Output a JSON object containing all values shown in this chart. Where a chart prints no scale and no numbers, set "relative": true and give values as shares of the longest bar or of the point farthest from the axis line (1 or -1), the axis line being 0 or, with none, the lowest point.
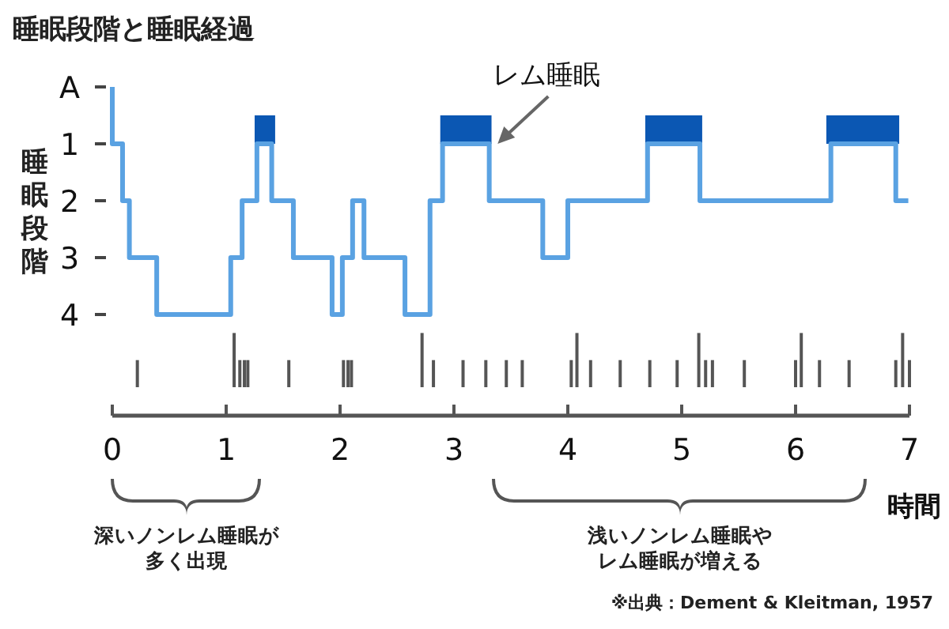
{
  "chart_data": [
    {
      "type": "step",
      "title": "睡眠段階と睡眠経過",
      "ylabel": "睡眠段階",
      "xlabel": "時間",
      "x": [
        0,
        0,
        0.09,
        0.15,
        0.39,
        1.04,
        1.14,
        1.27,
        1.4,
        1.59,
        1.93,
        2.02,
        2.11,
        2.21,
        2.57,
        2.79,
        2.9,
        3.31,
        3.78,
        4.0,
        4.7,
        5.16,
        6.31,
        6.88,
        6.99
      ],
      "series": [
        {
          "color": "#5aa2e2",
          "values": [
            0,
            1,
            2,
            3,
            4,
            3,
            2,
            1,
            2,
            3,
            4,
            3,
            2,
            3,
            4,
            2,
            1,
            2,
            3,
            2,
            1,
            2,
            1,
            2,
            2
          ]
        }
      ],
      "bands": [
        {
          "axis": "x",
          "from": 1.25,
          "to": 1.43,
          "color": "#0b57b3"
        },
        {
          "axis": "x",
          "from": 2.88,
          "to": 3.33,
          "color": "#0b57b3"
        },
        {
          "axis": "x",
          "from": 4.68,
          "to": 5.18,
          "color": "#0b57b3"
        },
        {
          "axis": "x",
          "from": 6.27,
          "to": 6.91,
          "color": "#0b57b3"
        }
      ],
      "annotations": [
        {
          "text": "レム睡眠",
          "x": 3.37,
          "y": 1
        }
      ],
      "xlim": [
        0,
        7
      ],
      "xticks": [
        0,
        1,
        2,
        3,
        4,
        5,
        6,
        7
      ],
      "ylim": [
        4,
        0
      ],
      "yticks": [
        {
          "value": 0,
          "label": "A"
        },
        1,
        2,
        3,
        4
      ],
      "grid": false
    },
    {
      "type": "bar",
      "relative": true,
      "x": [
        0.22,
        1.07,
        1.12,
        1.16,
        1.19,
        1.55,
        2.03,
        2.07,
        2.1,
        2.72,
        2.82,
        3.08,
        3.28,
        3.46,
        3.6,
        4.03,
        4.08,
        4.2,
        4.46,
        4.72,
        4.96,
        5.15,
        5.21,
        5.27,
        5.55,
        6.0,
        6.05,
        6.21,
        6.47,
        6.88,
        6.94,
        7.0
      ],
      "series": [
        {
          "color": "#555555",
          "values": [
            0.5,
            1,
            0.5,
            0.5,
            0.5,
            0.5,
            0.5,
            0.5,
            0.5,
            1,
            0.5,
            0.5,
            0.5,
            0.5,
            0.5,
            0.5,
            1,
            0.5,
            0.5,
            0.5,
            0.5,
            1,
            0.5,
            0.5,
            0.5,
            0.5,
            1,
            0.5,
            0.5,
            0.5,
            1,
            0.5
          ]
        }
      ],
      "annotations": [
        "深いノンレム睡眠が多く出現",
        "浅いノンレム睡眠やレム睡眠が増える",
        "※出典：Dement & Kleitman, 1957"
      ],
      "xlim": [
        0,
        7
      ],
      "grid": false
    }
  ]
}
